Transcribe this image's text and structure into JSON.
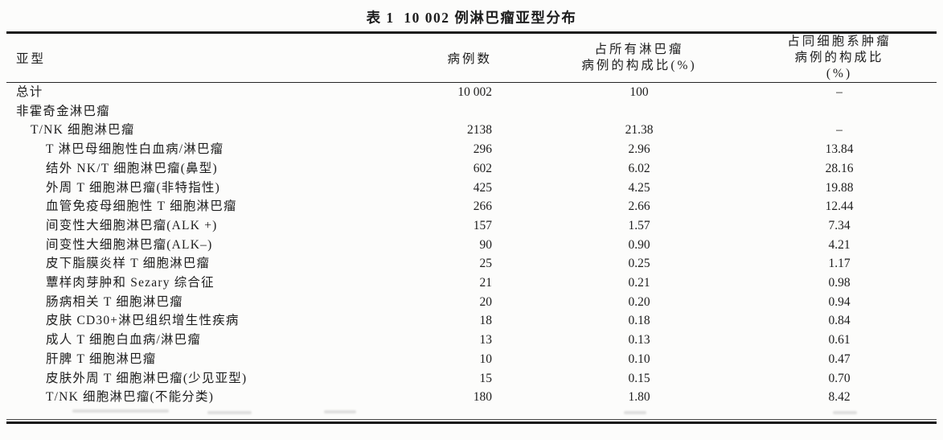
{
  "title": "表 1  10 002 例淋巴瘤亚型分布",
  "table": {
    "header": {
      "subtype": "亚型",
      "cases": "病例数",
      "pct_all_line1": "占所有淋巴瘤",
      "pct_all_line2": "病例的构成比(%)",
      "pct_lineage_line1": "占同细胞系肿瘤",
      "pct_lineage_line2": "病例的构成比(%)"
    },
    "rows": [
      {
        "indent": 0,
        "subtype": "总计",
        "cases": "10 002",
        "pct_all": "100",
        "pct_lineage": "–"
      },
      {
        "indent": 0,
        "subtype": "非霍奇金淋巴瘤",
        "cases": "",
        "pct_all": "",
        "pct_lineage": ""
      },
      {
        "indent": 1,
        "subtype": "T/NK 细胞淋巴瘤",
        "cases": "2138",
        "pct_all": "21.38",
        "pct_lineage": "–"
      },
      {
        "indent": 2,
        "subtype": "T 淋巴母细胞性白血病/淋巴瘤",
        "cases": "296",
        "pct_all": "2.96",
        "pct_lineage": "13.84"
      },
      {
        "indent": 2,
        "subtype": "结外 NK/T 细胞淋巴瘤(鼻型)",
        "cases": "602",
        "pct_all": "6.02",
        "pct_lineage": "28.16"
      },
      {
        "indent": 2,
        "subtype": "外周 T 细胞淋巴瘤(非特指性)",
        "cases": "425",
        "pct_all": "4.25",
        "pct_lineage": "19.88"
      },
      {
        "indent": 2,
        "subtype": "血管免疫母细胞性 T 细胞淋巴瘤",
        "cases": "266",
        "pct_all": "2.66",
        "pct_lineage": "12.44"
      },
      {
        "indent": 2,
        "subtype": "间变性大细胞淋巴瘤(ALK +)",
        "cases": "157",
        "pct_all": "1.57",
        "pct_lineage": "7.34"
      },
      {
        "indent": 2,
        "subtype": "间变性大细胞淋巴瘤(ALK–)",
        "cases": "90",
        "pct_all": "0.90",
        "pct_lineage": "4.21"
      },
      {
        "indent": 2,
        "subtype": "皮下脂膜炎样 T 细胞淋巴瘤",
        "cases": "25",
        "pct_all": "0.25",
        "pct_lineage": "1.17"
      },
      {
        "indent": 2,
        "subtype": "蕈样肉芽肿和 Sezary 综合征",
        "cases": "21",
        "pct_all": "0.21",
        "pct_lineage": "0.98"
      },
      {
        "indent": 2,
        "subtype": "肠病相关 T 细胞淋巴瘤",
        "cases": "20",
        "pct_all": "0.20",
        "pct_lineage": "0.94"
      },
      {
        "indent": 2,
        "subtype": "皮肤 CD30+淋巴组织增生性疾病",
        "cases": "18",
        "pct_all": "0.18",
        "pct_lineage": "0.84"
      },
      {
        "indent": 2,
        "subtype": "成人 T 细胞白血病/淋巴瘤",
        "cases": "13",
        "pct_all": "0.13",
        "pct_lineage": "0.61"
      },
      {
        "indent": 2,
        "subtype": "肝脾 T 细胞淋巴瘤",
        "cases": "10",
        "pct_all": "0.10",
        "pct_lineage": "0.47"
      },
      {
        "indent": 2,
        "subtype": "皮肤外周 T 细胞淋巴瘤(少见亚型)",
        "cases": "15",
        "pct_all": "0.15",
        "pct_lineage": "0.70"
      },
      {
        "indent": 2,
        "subtype": "T/NK 细胞淋巴瘤(不能分类)",
        "cases": "180",
        "pct_all": "1.80",
        "pct_lineage": "8.42"
      }
    ]
  }
}
